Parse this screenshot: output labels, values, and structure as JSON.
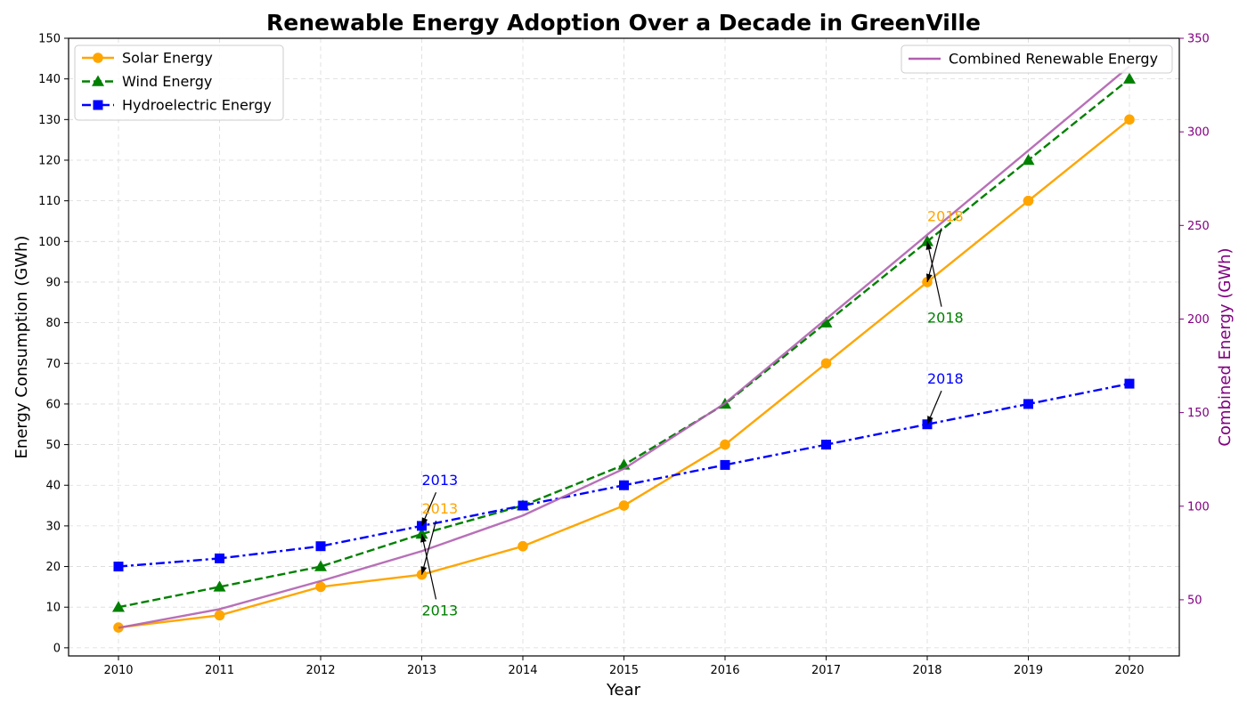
{
  "chart_data": {
    "type": "line",
    "title": "Renewable Energy Adoption Over a Decade in GreenVille",
    "xlabel": "Year",
    "ylabel": "Energy Consumption (GWh)",
    "y2label": "Combined Energy (GWh)",
    "x": [
      "2010",
      "2011",
      "2012",
      "2013",
      "2014",
      "2015",
      "2016",
      "2017",
      "2018",
      "2019",
      "2020"
    ],
    "ylim": [
      -2,
      150
    ],
    "y2lim": [
      20,
      350
    ],
    "yticks": [
      0,
      10,
      20,
      30,
      40,
      50,
      60,
      70,
      80,
      90,
      100,
      110,
      120,
      130,
      140,
      150
    ],
    "y2ticks": [
      50,
      100,
      150,
      200,
      250,
      300,
      350
    ],
    "grid": true,
    "series": [
      {
        "name": "Solar Energy",
        "axis": "left",
        "color": "#ffa500",
        "dash": "solid",
        "marker": "circle",
        "values": [
          5,
          8,
          15,
          18,
          25,
          35,
          50,
          70,
          90,
          110,
          130
        ]
      },
      {
        "name": "Wind Energy",
        "axis": "left",
        "color": "#008000",
        "dash": "dashed",
        "marker": "triangle",
        "values": [
          10,
          15,
          20,
          28,
          35,
          45,
          60,
          80,
          100,
          120,
          140
        ]
      },
      {
        "name": "Hydroelectric Energy",
        "axis": "left",
        "color": "#0000ff",
        "dash": "dashdot",
        "marker": "square",
        "values": [
          20,
          22,
          25,
          30,
          35,
          40,
          45,
          50,
          55,
          60,
          65
        ]
      },
      {
        "name": "Combined Renewable Energy",
        "axis": "right",
        "color": "#b060b0",
        "dash": "solid",
        "marker": "none",
        "values": [
          35,
          45,
          60,
          76,
          95,
          120,
          155,
          200,
          245,
          290,
          335
        ]
      }
    ],
    "legend_left": {
      "placement": "upper-left",
      "items": [
        "Solar Energy",
        "Wind Energy",
        "Hydroelectric Energy"
      ]
    },
    "legend_right": {
      "placement": "upper-right",
      "items": [
        "Combined Renewable Energy"
      ]
    },
    "annotations": [
      {
        "text": "2013",
        "color": "#0000ff",
        "x": "2013",
        "y": 30,
        "text_x": "2013",
        "text_y": 40
      },
      {
        "text": "2013",
        "color": "#ffa500",
        "x": "2013",
        "y": 18,
        "text_x": "2013",
        "text_y": 33
      },
      {
        "text": "2013",
        "color": "#008000",
        "x": "2013",
        "y": 28,
        "text_x": "2013",
        "text_y": 8
      },
      {
        "text": "2018",
        "color": "#ffa500",
        "x": "2018",
        "y": 90,
        "text_x": "2018",
        "text_y": 105
      },
      {
        "text": "2018",
        "color": "#008000",
        "x": "2018",
        "y": 100,
        "text_x": "2018",
        "text_y": 80
      },
      {
        "text": "2018",
        "color": "#0000ff",
        "x": "2018",
        "y": 55,
        "text_x": "2018",
        "text_y": 65
      }
    ],
    "colors": {
      "right_axis": "#800080",
      "grid": "#d9d9d9",
      "axis": "#000000"
    }
  }
}
